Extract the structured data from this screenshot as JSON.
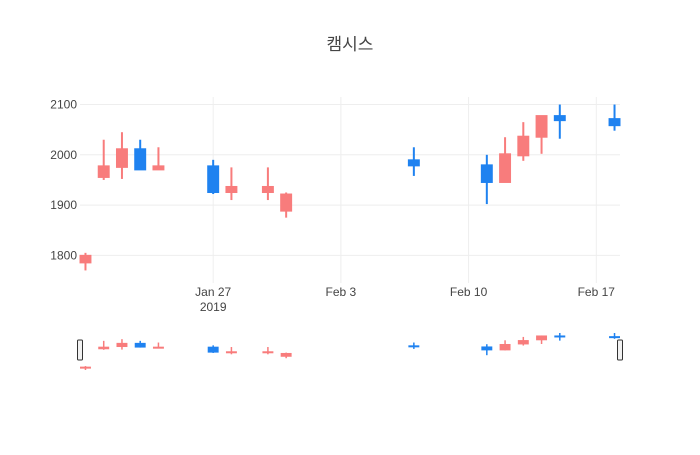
{
  "chart_data": {
    "type": "candlestick",
    "title": "캠시스",
    "xlabel": "",
    "ylabel": "",
    "x_ticks": [
      {
        "date": "2019-01-27",
        "label": "Jan 27",
        "sublabel": "2019"
      },
      {
        "date": "2019-02-03",
        "label": "Feb 3",
        "sublabel": ""
      },
      {
        "date": "2019-02-10",
        "label": "Feb 10",
        "sublabel": ""
      },
      {
        "date": "2019-02-17",
        "label": "Feb 17",
        "sublabel": ""
      }
    ],
    "y_ticks": [
      1800,
      1900,
      2000,
      2100
    ],
    "xlim": [
      "2019-01-20",
      "2019-02-18"
    ],
    "ylim": [
      1745,
      2115
    ],
    "grid": true,
    "rangeslider": true,
    "colors": {
      "increasing": "#f87c7c",
      "decreasing": "#1f82f0",
      "grid": "#eeeeee",
      "text": "#444444"
    },
    "candles": [
      {
        "date": "2019-01-20",
        "open": 1785,
        "high": 1805,
        "low": 1770,
        "close": 1800
      },
      {
        "date": "2019-01-21",
        "open": 1955,
        "high": 2030,
        "low": 1950,
        "close": 1978
      },
      {
        "date": "2019-01-22",
        "open": 1975,
        "high": 2045,
        "low": 1952,
        "close": 2012
      },
      {
        "date": "2019-01-23",
        "open": 2012,
        "high": 2030,
        "low": 1970,
        "close": 1970
      },
      {
        "date": "2019-01-24",
        "open": 1970,
        "high": 2015,
        "low": 1970,
        "close": 1978
      },
      {
        "date": "2019-01-27",
        "open": 1978,
        "high": 1990,
        "low": 1922,
        "close": 1925
      },
      {
        "date": "2019-01-28",
        "open": 1925,
        "high": 1975,
        "low": 1910,
        "close": 1937
      },
      {
        "date": "2019-01-30",
        "open": 1925,
        "high": 1975,
        "low": 1910,
        "close": 1937
      },
      {
        "date": "2019-01-31",
        "open": 1888,
        "high": 1925,
        "low": 1875,
        "close": 1922
      },
      {
        "date": "2019-02-07",
        "open": 1990,
        "high": 2015,
        "low": 1958,
        "close": 1978
      },
      {
        "date": "2019-02-11",
        "open": 1980,
        "high": 2000,
        "low": 1902,
        "close": 1945
      },
      {
        "date": "2019-02-12",
        "open": 1945,
        "high": 2035,
        "low": 1945,
        "close": 2002
      },
      {
        "date": "2019-02-13",
        "open": 1998,
        "high": 2065,
        "low": 1988,
        "close": 2037
      },
      {
        "date": "2019-02-14",
        "open": 2035,
        "high": 2078,
        "low": 2002,
        "close": 2078
      },
      {
        "date": "2019-02-15",
        "open": 2078,
        "high": 2100,
        "low": 2032,
        "close": 2068
      },
      {
        "date": "2019-02-18",
        "open": 2072,
        "high": 2100,
        "low": 2048,
        "close": 2058
      }
    ]
  }
}
